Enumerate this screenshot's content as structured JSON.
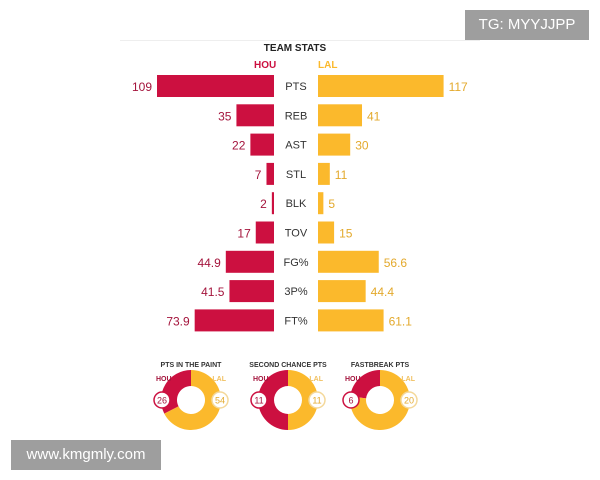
{
  "watermarks": {
    "top": "TG: MYYJJPP",
    "bottom": "www.kmgmly.com"
  },
  "colors": {
    "HOU": "#cc1040",
    "LAL": "#fbb92c"
  },
  "chart_data": [
    {
      "type": "bar",
      "title": "TEAM STATS",
      "legend": [
        "HOU",
        "LAL"
      ],
      "categories": [
        "PTS",
        "REB",
        "AST",
        "STL",
        "BLK",
        "TOV",
        "FG%",
        "3P%",
        "FT%"
      ],
      "series": [
        {
          "name": "HOU",
          "values": [
            109,
            35,
            22,
            7,
            2,
            17,
            44.9,
            41.5,
            73.9
          ]
        },
        {
          "name": "LAL",
          "values": [
            117,
            41,
            30,
            11,
            5,
            15,
            56.6,
            44.4,
            61.1
          ]
        }
      ]
    },
    {
      "type": "pie",
      "subtype": "donut",
      "charts": [
        {
          "title": "PTS IN THE PAINT",
          "labels": [
            "HOU",
            "LAL"
          ],
          "values": [
            26,
            54
          ]
        },
        {
          "title": "SECOND CHANCE PTS",
          "labels": [
            "HOU",
            "LAL"
          ],
          "values": [
            11,
            11
          ]
        },
        {
          "title": "FASTBREAK PTS",
          "labels": [
            "HOU",
            "LAL"
          ],
          "values": [
            6,
            20
          ]
        }
      ]
    }
  ]
}
